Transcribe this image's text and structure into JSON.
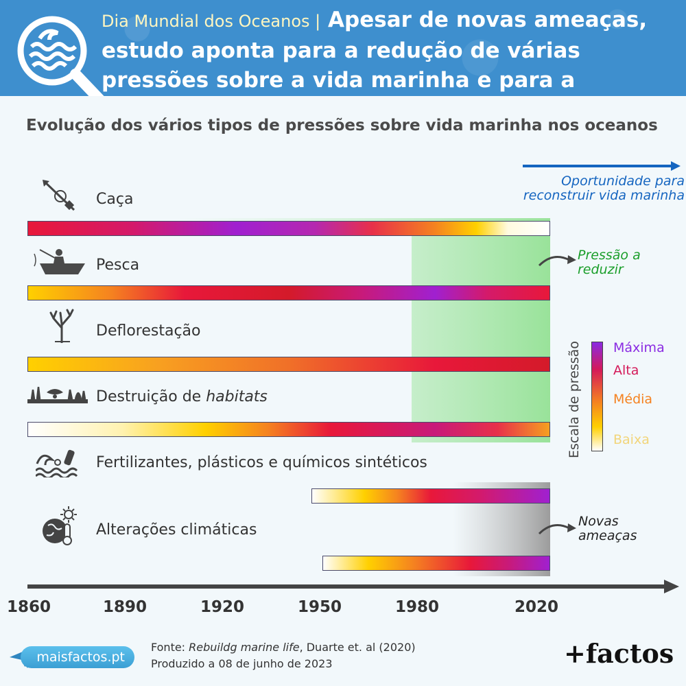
{
  "header": {
    "kicker": "Dia Mundial dos Oceanos |",
    "headline": "Apesar de novas ameaças, estudo aponta para a redução de várias pressões sobre a vida marinha e para a oportunidade de reconstrução"
  },
  "chart_data": {
    "type": "heatmap",
    "title": "Evolução dos vários tipos de pressões sobre vida marinha nos oceanos",
    "x_ticks": [
      "1860",
      "1890",
      "1920",
      "1950",
      "1980",
      "2020"
    ],
    "xlim": [
      1860,
      2020
    ],
    "pressure_scale": {
      "title": "Escala de pressão",
      "levels": [
        "Máxima",
        "Alta",
        "Média",
        "Baixa"
      ],
      "colors": {
        "Máxima": "#8a2be2",
        "Alta": "#d41a5a",
        "Média": "#f58220",
        "Baixa": "#f2d57a"
      }
    },
    "series": [
      {
        "name": "Caça",
        "start": 1860,
        "end": 2020
      },
      {
        "name": "Pesca",
        "start": 1860,
        "end": 2020
      },
      {
        "name": "Deflorestação",
        "start": 1860,
        "end": 2020
      },
      {
        "name": "Destruição de habitats",
        "start": 1860,
        "end": 2020
      },
      {
        "name": "Fertilizantes, plásticos e químicos sintéticos",
        "start": 1947,
        "end": 2020
      },
      {
        "name": "Alterações climáticas",
        "start": 1950,
        "end": 2020
      }
    ],
    "annotations": {
      "opportunity": "Oportunidade para reconstruir vida marinha",
      "reducing": "Pressão a reduzir",
      "new_threats": "Novas ameaças"
    }
  },
  "rows": {
    "r1": "Caça",
    "r2": "Pesca",
    "r3": "Deflorestação",
    "r4_pre": "Destruição de ",
    "r4_em": "habitats",
    "r5": "Fertilizantes, plásticos e químicos sintéticos",
    "r6": "Alterações climáticas"
  },
  "footer": {
    "source_pre": "Fonte: ",
    "source_title": "Rebuildg marine life",
    "source_post": ", Duarte et. al (2020)",
    "produced": "Produzido a 08 de junho de 2023",
    "site": "maisfactos.pt",
    "brand": "+factos"
  },
  "colors": {
    "header": "#3e8fce",
    "accent_blue": "#1565c0",
    "green_note": "#1a9e2a"
  }
}
